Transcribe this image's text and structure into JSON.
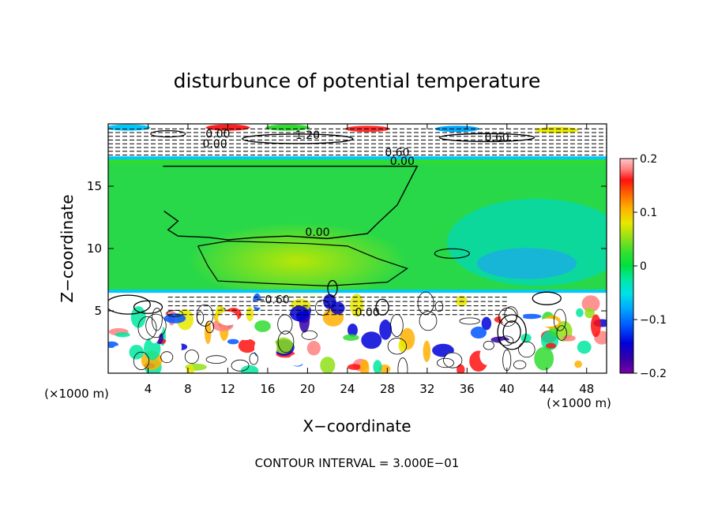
{
  "chart_data": {
    "type": "heatmap",
    "title": "disturbunce of potential temperature",
    "xlabel": "X−coordinate",
    "ylabel": "Z−coordinate",
    "x_unit_left": "(×1000 m)",
    "x_unit_right": "(×1000 m)",
    "footer": "CONTOUR INTERVAL = 3.000E−01",
    "xlim": [
      0,
      50
    ],
    "ylim": [
      0,
      20
    ],
    "x_ticks": [
      4,
      8,
      12,
      16,
      20,
      24,
      28,
      32,
      36,
      40,
      44,
      48
    ],
    "y_ticks": [
      5,
      10,
      15
    ],
    "colorbar": {
      "range": [
        -0.2,
        0.2
      ],
      "ticks": [
        {
          "value": 0.2,
          "label": "0.2"
        },
        {
          "value": 0.1,
          "label": "0.1"
        },
        {
          "value": 0.0,
          "label": "0"
        },
        {
          "value": -0.1,
          "label": "−0.1"
        },
        {
          "value": -0.2,
          "label": "−0.2"
        }
      ],
      "colors": [
        "#7a00a8",
        "#3300aa",
        "#0000d8",
        "#0055ff",
        "#00a8ff",
        "#00e0e8",
        "#00e8a0",
        "#00e040",
        "#30e030",
        "#90e018",
        "#e8e800",
        "#ffb000",
        "#ff6000",
        "#ff1010",
        "#ff8080",
        "#ffc8c8"
      ]
    },
    "contour_labels": [
      {
        "text": "0.00",
        "x": 21.0,
        "y": 11.0
      },
      {
        "text": "0.00",
        "x": 29.5,
        "y": 16.7
      },
      {
        "text": "0.00",
        "x": 26.0,
        "y": 4.6
      },
      {
        "text": "0.00",
        "x": 11.0,
        "y": 18.9
      },
      {
        "text": "0.00",
        "x": 10.7,
        "y": 18.1
      },
      {
        "text": "−0.60",
        "x": 16.5,
        "y": 5.6
      },
      {
        "text": "1.20",
        "x": 20.0,
        "y": 18.8
      },
      {
        "text": "0.60",
        "x": 39.0,
        "y": 18.6
      },
      {
        "text": "0.60",
        "x": 29.0,
        "y": 17.4
      }
    ],
    "regions": {
      "upper_layer_z": [
        17.2,
        20
      ],
      "green_core_x": [
        5.5,
        31.0
      ],
      "green_core_z": [
        6.6,
        16.8
      ],
      "lower_turbulent_z": [
        0,
        6.5
      ]
    }
  }
}
